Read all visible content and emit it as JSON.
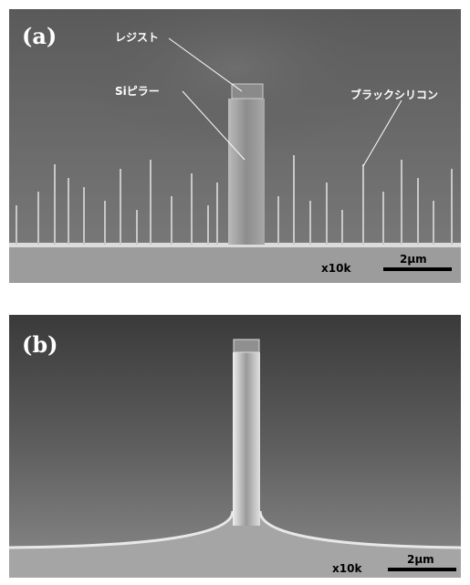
{
  "panels": [
    {
      "label": "(a)",
      "annotations": [
        "レジスト",
        "Siピラー",
        "ブラックシリコン"
      ],
      "magnification": "x10k",
      "scale_bar": "2μm"
    },
    {
      "label": "(b)",
      "magnification": "x10k",
      "scale_bar": "2μm"
    }
  ]
}
